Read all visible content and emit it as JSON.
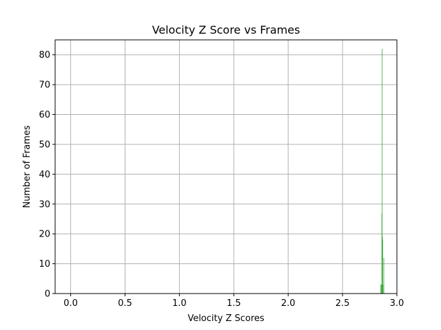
{
  "chart_data": {
    "type": "bar",
    "title": "Velocity Z Score vs Frames",
    "xlabel": "Velocity Z Scores",
    "ylabel": "Number of Frames",
    "xlim": [
      -0.143,
      3.0
    ],
    "ylim": [
      0,
      85
    ],
    "x_ticks": [
      0.0,
      0.5,
      1.0,
      1.5,
      2.0,
      2.5,
      3.0
    ],
    "x_tick_labels": [
      "0.0",
      "0.5",
      "1.0",
      "1.5",
      "2.0",
      "2.5",
      "3.0"
    ],
    "y_ticks": [
      0,
      10,
      20,
      30,
      40,
      50,
      60,
      70,
      80
    ],
    "y_tick_labels": [
      "0",
      "10",
      "20",
      "30",
      "40",
      "50",
      "60",
      "70",
      "80"
    ],
    "grid": true,
    "bar_color": "#2ca02c",
    "bar_width": 0.0025,
    "bars": [
      {
        "x": 2.85,
        "value": 3
      },
      {
        "x": 2.855,
        "value": 3
      },
      {
        "x": 2.86,
        "value": 27
      },
      {
        "x": 2.862,
        "value": 82
      },
      {
        "x": 2.865,
        "value": 19
      },
      {
        "x": 2.867,
        "value": 18
      },
      {
        "x": 2.87,
        "value": 3
      },
      {
        "x": 2.878,
        "value": 12
      }
    ]
  }
}
